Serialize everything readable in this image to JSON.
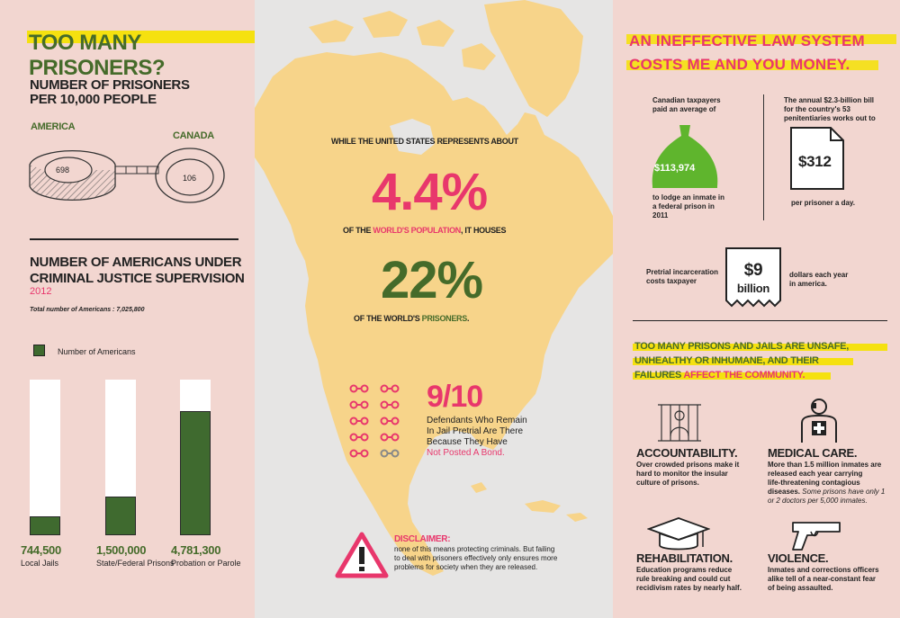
{
  "left": {
    "title": "TOO MANY PRISONERS?",
    "prisoners_heading_1": "NUMBER OF PRISONERS",
    "prisoners_heading_2": "PER 10,000 PEOPLE",
    "america_label": "AMERICA",
    "canada_label": "CANADA",
    "america_value": "698",
    "canada_value": "106",
    "supervision_heading_1": "NUMBER OF AMERICANS UNDER",
    "supervision_heading_2": "CRIMINAL JUSTICE SUPERVISION",
    "year": "2012",
    "total_note": "Total number of Americans : 7,025,800",
    "legend_label": "Number of Americans",
    "bars": [
      {
        "value": "744,500",
        "label": "Local Jails",
        "amount": 744500
      },
      {
        "value": "1,500,000",
        "label": "State/Federal Prisons",
        "amount": 1500000
      },
      {
        "value": "4,781,300",
        "label": "Probation or Parole",
        "amount": 4781300
      }
    ]
  },
  "middle": {
    "intro": "WHILE THE UNITED STATES REPRESENTS ABOUT",
    "pct_population": "4.4%",
    "line2_a": "OF THE ",
    "line2_b": "WORLD'S POPULATION",
    "line2_c": ", IT HOUSES",
    "pct_prisoners": "22%",
    "line3_a": "OF THE WORLD'S ",
    "line3_b": "PRISONERS",
    "line3_c": ".",
    "ratio": "9/10",
    "ratio_text_1": "Defendants Who Remain",
    "ratio_text_2": "In Jail Pretrial Are There",
    "ratio_text_3": "Because They Have",
    "ratio_text_4": "Not Posted A Bond.",
    "disclaimer_title": "DISCLAIMER:",
    "disclaimer_1": "none of this means protecting criminals. But failing",
    "disclaimer_2": "to deal with prisoners effectively only ensures more",
    "disclaimer_3": "problems for society when they are released."
  },
  "right": {
    "title_1": "AN INEFFECTIVE LAW SYSTEM",
    "title_2": "COSTS ME AND YOU MONEY.",
    "canada_1": "Canadian taxpayers",
    "canada_2": "paid an average of",
    "bag_amount": "$113,974",
    "lodge_1": "to lodge an inmate in",
    "lodge_2": "a federal prison in",
    "lodge_3": "2011",
    "annual_1": "The annual $2.3-billion bill",
    "annual_2": "for the country's 53",
    "annual_3": "penitentiaries works out to",
    "doc_amount": "$312",
    "per_prisoner": "per prisoner a day.",
    "pretrial_1": "Pretrial incarceration",
    "pretrial_2": "costs taxpayer",
    "receipt_1": "$9",
    "receipt_2": "billion",
    "dollars_1": "dollars each year",
    "dollars_2": "in america.",
    "prisons_1": "TOO MANY PRISONS AND JAILS ARE UNSAFE,",
    "prisons_2": "UNHEALTHY OR INHUMANE, AND THEIR",
    "prisons_3a": "FAILURES ",
    "prisons_3b": "AFFECT THE COMMUNITY.",
    "acc_title": "ACCOUNTABILITY.",
    "acc_1": "Over crowded prisons make it",
    "acc_2": "hard to monitor the insular",
    "acc_3": "culture of prisons.",
    "med_title": "MEDICAL CARE.",
    "med_1": "More than 1.5 million inmates are",
    "med_2": "released each year carrying",
    "med_3": "life-threatening contagious",
    "med_4a": "diseases. ",
    "med_4b": "Some prisons have only 1",
    "med_5": "or 2 doctors per 5,000 inmates.",
    "reh_title": "REHABILITATION.",
    "reh_1": "Education programs reduce",
    "reh_2": "rule breaking and could cut",
    "reh_3": "recidivism rates by nearly half.",
    "vio_title": "VIOLENCE.",
    "vio_1": "Inmates and corrections officers",
    "vio_2": "alike tell of a near-constant fear",
    "vio_3": "of being assaulted."
  },
  "colors": {
    "green": "#456b2a",
    "pink": "#e8376c",
    "yellow": "#f5e10f",
    "map": "#f7d48a"
  }
}
